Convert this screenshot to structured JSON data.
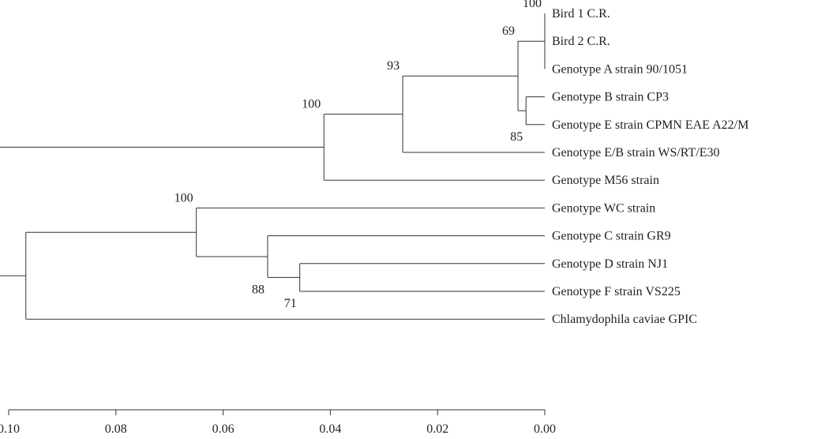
{
  "tree": {
    "leaves": [
      {
        "label": "Bird 1 C.R.",
        "dist": 0.0
      },
      {
        "label": "Bird 2 C.R.",
        "dist": 0.0
      },
      {
        "label": "Genotype A strain 90/1051",
        "dist": 0.0
      },
      {
        "label": "Genotype B strain CP3",
        "dist": 0.0
      },
      {
        "label": "Genotype E strain CPMN EAE A22/M",
        "dist": 0.0
      },
      {
        "label": "Genotype E/B strain WS/RT/E30",
        "dist": 0.0
      },
      {
        "label": "Genotype M56 strain",
        "dist": 0.0
      },
      {
        "label": "Genotype WC strain",
        "dist": 0.0
      },
      {
        "label": "Genotype C strain GR9",
        "dist": 0.0
      },
      {
        "label": "Genotype D strain NJ1",
        "dist": 0.0
      },
      {
        "label": "Genotype F strain VS225",
        "dist": 0.0
      },
      {
        "label": "Chlamydophila caviae GPIC",
        "dist": 0.0
      }
    ],
    "nodes": [
      {
        "id": "n_bird",
        "dist": 0.0,
        "children": [
          "L0",
          "L1",
          "L2"
        ],
        "bootstrap": "100",
        "label_side": "above"
      },
      {
        "id": "n_be",
        "dist": 0.0035,
        "children": [
          "L3",
          "L4"
        ],
        "bootstrap": "85",
        "label_side": "below"
      },
      {
        "id": "n_abe",
        "dist": 0.005,
        "children": [
          "n_bird",
          "n_be"
        ],
        "bootstrap": "69",
        "label_side": "above"
      },
      {
        "id": "n_eb",
        "dist": 0.0265,
        "children": [
          "n_abe",
          "L5"
        ],
        "bootstrap": "93",
        "label_side": "above"
      },
      {
        "id": "n_m56",
        "dist": 0.0412,
        "children": [
          "n_eb",
          "L6"
        ],
        "bootstrap": "100",
        "label_side": "above"
      },
      {
        "id": "n_df",
        "dist": 0.0457,
        "children": [
          "L9",
          "L10"
        ],
        "bootstrap": "71",
        "label_side": "below"
      },
      {
        "id": "n_cdf",
        "dist": 0.0517,
        "children": [
          "L8",
          "n_df"
        ],
        "bootstrap": "88",
        "label_side": "below"
      },
      {
        "id": "n_wc",
        "dist": 0.065,
        "children": [
          "L7",
          "n_cdf"
        ],
        "bootstrap": "100",
        "label_side": "above"
      },
      {
        "id": "n_cav",
        "dist": 0.0968,
        "children": [
          "n_wc",
          "L11"
        ],
        "bootstrap": "",
        "label_side": "above"
      },
      {
        "id": "root",
        "dist": 0.1035,
        "children": [
          "n_m56",
          "n_cav"
        ],
        "bootstrap": "",
        "label_side": "above"
      }
    ]
  },
  "axis": {
    "min": 0.0,
    "max": 0.1,
    "reversed": true,
    "ticks": [
      0.1,
      0.08,
      0.06,
      0.04,
      0.02,
      0.0
    ],
    "tick_labels": [
      "0.10",
      "0.08",
      "0.06",
      "0.04",
      "0.02",
      "0.00"
    ]
  }
}
